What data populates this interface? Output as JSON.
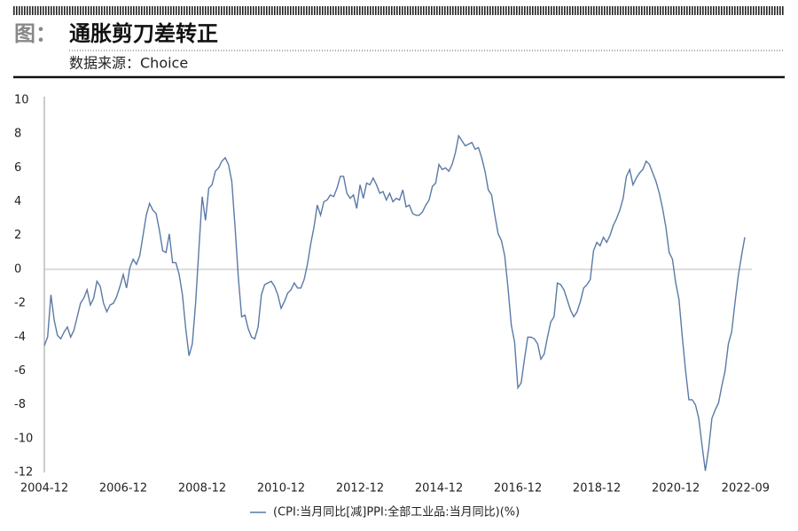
{
  "chart_data": {
    "type": "line",
    "figure_label": "图：",
    "title": "通胀剪刀差转正",
    "subtitle": "数据来源：Choice",
    "categories": [
      "2004-12",
      null,
      null,
      null,
      null,
      null,
      null,
      null,
      null,
      null,
      null,
      null,
      null,
      null,
      null,
      null,
      null,
      null,
      null,
      null,
      null,
      null,
      null,
      null,
      "2006-12",
      null,
      null,
      null,
      null,
      null,
      null,
      null,
      null,
      null,
      null,
      null,
      null,
      null,
      null,
      null,
      null,
      null,
      null,
      null,
      null,
      null,
      null,
      null,
      "2008-12",
      null,
      null,
      null,
      null,
      null,
      null,
      null,
      null,
      null,
      null,
      null,
      null,
      null,
      null,
      null,
      null,
      null,
      null,
      null,
      null,
      null,
      null,
      null,
      "2010-12",
      null,
      null,
      null,
      null,
      null,
      null,
      null,
      null,
      null,
      null,
      null,
      null,
      null,
      null,
      null,
      null,
      null,
      null,
      null,
      null,
      null,
      null,
      null,
      "2012-12",
      null,
      null,
      null,
      null,
      null,
      null,
      null,
      null,
      null,
      null,
      null,
      null,
      null,
      null,
      null,
      null,
      null,
      null,
      null,
      null,
      null,
      null,
      null,
      "2014-12",
      null,
      null,
      null,
      null,
      null,
      null,
      null,
      null,
      null,
      null,
      null,
      null,
      null,
      null,
      null,
      null,
      null,
      null,
      null,
      null,
      null,
      null,
      null,
      "2016-12",
      null,
      null,
      null,
      null,
      null,
      null,
      null,
      null,
      null,
      null,
      null,
      null,
      null,
      null,
      null,
      null,
      null,
      null,
      null,
      null,
      null,
      null,
      null,
      "2018-12",
      null,
      null,
      null,
      null,
      null,
      null,
      null,
      null,
      null,
      null,
      null,
      null,
      null,
      null,
      null,
      null,
      null,
      null,
      null,
      null,
      null,
      null,
      null,
      "2020-12",
      null,
      null,
      null,
      null,
      null,
      null,
      null,
      null,
      null,
      null,
      null,
      null,
      null,
      null,
      null,
      null,
      null,
      null,
      null,
      null,
      "2022-09"
    ],
    "series": [
      {
        "name": "(CPI:当月同比[减]PPI:全部工业品:当月同比)(%)",
        "color": "#5a7aa6",
        "values": [
          -4.5,
          -4.0,
          -1.5,
          -3.0,
          -3.9,
          -4.1,
          -3.7,
          -3.4,
          -4.0,
          -3.6,
          -2.8,
          -2.0,
          -1.7,
          -1.2,
          -2.1,
          -1.7,
          -0.7,
          -1.0,
          -2.0,
          -2.5,
          -2.1,
          -2.0,
          -1.6,
          -1.0,
          -0.3,
          -1.1,
          0.1,
          0.6,
          0.3,
          0.8,
          2.0,
          3.2,
          3.9,
          3.5,
          3.3,
          2.3,
          1.1,
          1.0,
          2.1,
          0.4,
          0.4,
          -0.3,
          -1.5,
          -3.5,
          -5.1,
          -4.4,
          -2.0,
          1.2,
          4.3,
          2.9,
          4.8,
          5.0,
          5.8,
          6.0,
          6.4,
          6.6,
          6.2,
          5.2,
          2.5,
          -0.5,
          -2.8,
          -2.7,
          -3.5,
          -4.0,
          -4.1,
          -3.4,
          -1.5,
          -0.9,
          -0.8,
          -0.7,
          -1.0,
          -1.5,
          -2.3,
          -1.9,
          -1.4,
          -1.2,
          -0.8,
          -1.1,
          -1.1,
          -0.6,
          0.3,
          1.5,
          2.5,
          3.8,
          3.2,
          4.0,
          4.1,
          4.4,
          4.3,
          4.8,
          5.5,
          5.5,
          4.5,
          4.2,
          4.4,
          3.6,
          5.0,
          4.2,
          5.1,
          5.0,
          5.4,
          5.0,
          4.5,
          4.6,
          4.1,
          4.5,
          4.0,
          4.2,
          4.1,
          4.7,
          3.7,
          3.8,
          3.3,
          3.2,
          3.2,
          3.4,
          3.8,
          4.1,
          4.9,
          5.1,
          6.2,
          5.9,
          6.0,
          5.8,
          6.2,
          6.9,
          7.9,
          7.6,
          7.3,
          7.4,
          7.5,
          7.1,
          7.2,
          6.6,
          5.8,
          4.7,
          4.4,
          3.2,
          2.1,
          1.7,
          0.8,
          -1.1,
          -3.3,
          -4.3,
          -7.0,
          -6.7,
          -5.3,
          -4.0,
          -4.0,
          -4.1,
          -4.4,
          -5.3,
          -5.0,
          -4.0,
          -3.1,
          -2.8,
          -0.8,
          -0.9,
          -1.2,
          -1.8,
          -2.4,
          -2.8,
          -2.5,
          -1.9,
          -1.1,
          -0.9,
          -0.6,
          1.1,
          1.6,
          1.4,
          1.9,
          1.6,
          2.0,
          2.6,
          3.0,
          3.5,
          4.2,
          5.5,
          5.9,
          5.0,
          5.4,
          5.7,
          5.9,
          6.4,
          6.2,
          5.7,
          5.2,
          4.5,
          3.6,
          2.5,
          1.0,
          0.6,
          -0.8,
          -1.8,
          -4.0,
          -6.0,
          -7.7,
          -7.7,
          -8.0,
          -8.8,
          -10.4,
          -11.9,
          -10.6,
          -8.8,
          -8.3,
          -7.9,
          -6.9,
          -6.0,
          -4.4,
          -3.7,
          -2.0,
          -0.4,
          0.8,
          1.9
        ]
      }
    ],
    "ylim": [
      -12,
      10
    ],
    "yticks": [
      -12,
      -10,
      -8,
      -6,
      -4,
      -2,
      0,
      2,
      4,
      6,
      8,
      10
    ],
    "grid": false,
    "legend": "bottom"
  }
}
